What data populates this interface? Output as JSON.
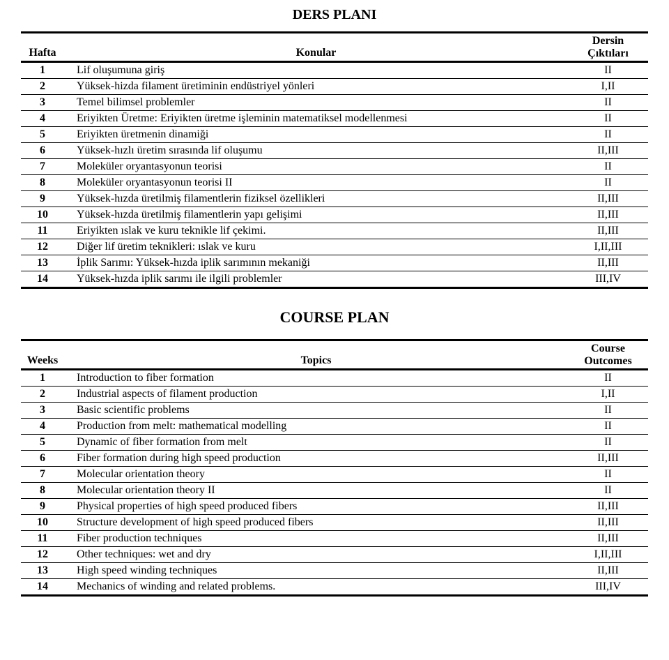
{
  "ders": {
    "title": "DERS PLANI",
    "header": {
      "col1": "Hafta",
      "col2": "Konular",
      "col3a": "Dersin",
      "col3b": "Çıktıları"
    },
    "rows": [
      {
        "n": "1",
        "topic": "Lif oluşumuna giriş",
        "out": "II"
      },
      {
        "n": "2",
        "topic": "Yüksek-hizda filament üretiminin endüstriyel yönleri",
        "out": "I,II"
      },
      {
        "n": "3",
        "topic": "Temel bilimsel problemler",
        "out": "II"
      },
      {
        "n": "4",
        "topic": "Eriyikten Üretme: Eriyikten üretme işleminin matematiksel modellenmesi",
        "out": "II"
      },
      {
        "n": "5",
        "topic": "Eriyikten üretmenin dinamiği",
        "out": "II"
      },
      {
        "n": "6",
        "topic": "Yüksek-hızlı üretim sırasında lif oluşumu",
        "out": "II,III"
      },
      {
        "n": "7",
        "topic": "Moleküler oryantasyonun teorisi",
        "out": "II"
      },
      {
        "n": "8",
        "topic": "Moleküler oryantasyonun teorisi II",
        "out": "II"
      },
      {
        "n": "9",
        "topic": "Yüksek-hızda üretilmiş filamentlerin fiziksel özellikleri",
        "out": "II,III"
      },
      {
        "n": "10",
        "topic": "Yüksek-hızda üretilmiş filamentlerin yapı gelişimi",
        "out": "II,III"
      },
      {
        "n": "11",
        "topic": "Eriyikten ıslak ve kuru teknikle lif çekimi.",
        "out": "II,III"
      },
      {
        "n": "12",
        "topic": "Diğer lif üretim teknikleri: ıslak ve kuru",
        "out": "I,II,III"
      },
      {
        "n": "13",
        "topic": "İplik Sarımı: Yüksek-hızda iplik sarımının mekaniği",
        "out": "II,III"
      },
      {
        "n": "14",
        "topic": "Yüksek-hızda iplik sarımı ile ilgili problemler",
        "out": "III,IV"
      }
    ]
  },
  "course": {
    "title": "COURSE PLAN",
    "header": {
      "col1": "Weeks",
      "col2": "Topics",
      "col3a": "Course",
      "col3b": "Outcomes"
    },
    "rows": [
      {
        "n": "1",
        "topic": "Introduction to fiber formation",
        "out": "II"
      },
      {
        "n": "2",
        "topic": "Industrial aspects of filament production",
        "out": "I,II"
      },
      {
        "n": "3",
        "topic": "Basic scientific problems",
        "out": "II"
      },
      {
        "n": "4",
        "topic": "Production from melt: mathematical modelling",
        "out": "II"
      },
      {
        "n": "5",
        "topic": "Dynamic of fiber formation from melt",
        "out": "II"
      },
      {
        "n": "6",
        "topic": "Fiber formation during high speed production",
        "out": "II,III"
      },
      {
        "n": "7",
        "topic": "Molecular orientation theory",
        "out": "II"
      },
      {
        "n": "8",
        "topic": "Molecular orientation theory II",
        "out": "II"
      },
      {
        "n": "9",
        "topic": "Physical properties of high speed produced fibers",
        "out": "II,III"
      },
      {
        "n": "10",
        "topic": "Structure development of high speed produced fibers",
        "out": "II,III"
      },
      {
        "n": "11",
        "topic": "Fiber production techniques",
        "out": "II,III"
      },
      {
        "n": "12",
        "topic": "Other techniques: wet and dry",
        "out": "I,II,III"
      },
      {
        "n": "13",
        "topic": "High speed winding techniques",
        "out": "II,III"
      },
      {
        "n": "14",
        "topic": "Mechanics of winding and related problems.",
        "out": "III,IV"
      }
    ]
  }
}
